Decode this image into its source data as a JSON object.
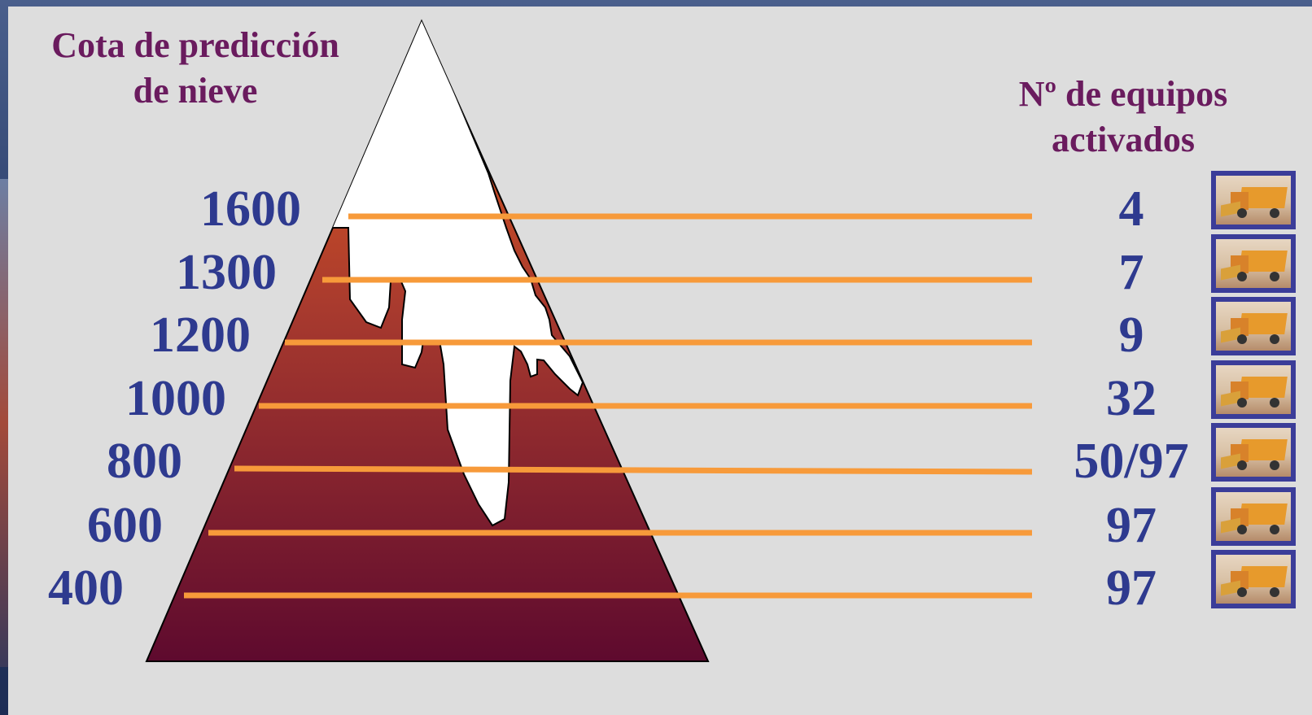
{
  "left_heading": [
    "Cota de predicción",
    "de nieve"
  ],
  "right_heading": [
    "Nº de equipos",
    "activados"
  ],
  "levels": [
    {
      "altitude": "1600",
      "teams": "4"
    },
    {
      "altitude": "1300",
      "teams": "7"
    },
    {
      "altitude": "1200",
      "teams": "9"
    },
    {
      "altitude": "1000",
      "teams": "32"
    },
    {
      "altitude": "800",
      "teams": "50/97"
    },
    {
      "altitude": "600",
      "teams": "97"
    },
    {
      "altitude": "400",
      "teams": "97"
    }
  ],
  "icons": {
    "team": "snowplow-truck-icon",
    "snow": "snow-cap-shape"
  },
  "colors": {
    "heading": "#6a1b5e",
    "numbers": "#2e3a8f",
    "lines": "#f79a3a",
    "mountain_top": "#e8601c",
    "mountain_bottom": "#5e0a2e",
    "snow": "#ffffff",
    "icon_frame": "#3b3d99"
  }
}
